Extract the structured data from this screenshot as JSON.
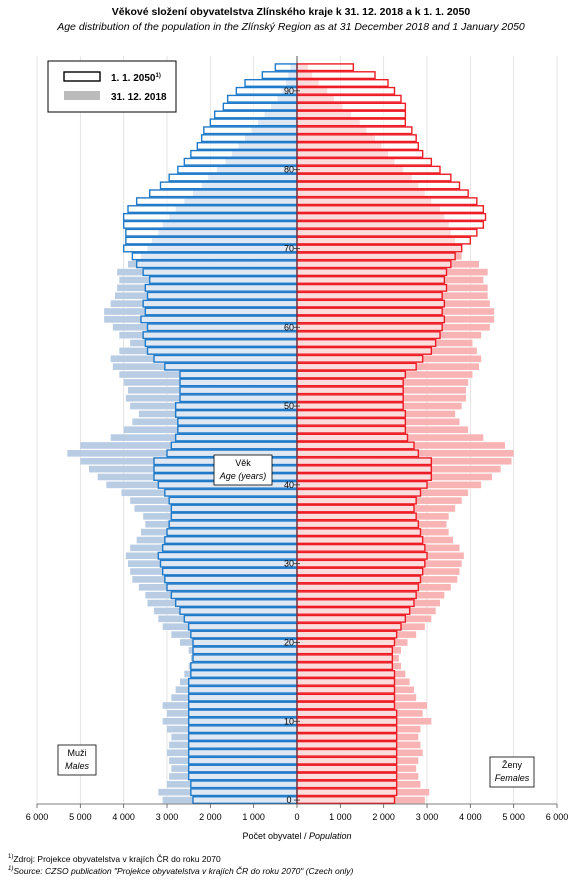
{
  "title": "Věkové složení obyvatelstva Zlínského kraje k 31. 12. 2018 a k 1. 1. 2050",
  "subtitle": "Age distribution of the population  in the Zlínský  Region as at 31 December 2018 and 1 January 2050",
  "legend": [
    {
      "label": "1. 1. 2050",
      "note_mark": "1)"
    },
    {
      "label": "31. 12. 2018"
    }
  ],
  "center_label": {
    "cs": "Věk",
    "en": "Age (years)"
  },
  "males_label": {
    "cs": "Muži",
    "en": "Males"
  },
  "females_label": {
    "cs": "Ženy",
    "en": "Females"
  },
  "x_axis_label": {
    "cs": "Počet obyvatel / ",
    "en": "Population"
  },
  "notes": [
    {
      "mark": "1)",
      "text": "Zdroj: Projekce obyvatelstva v krajích ČR do roku 2070"
    },
    {
      "mark": "1)",
      "text": "Source: CZSO publication \"Projekce obyvatelstva v krajích ČR do roku 2070\" (Czech only)"
    }
  ],
  "colors": {
    "male_2018": "#b8cce4",
    "female_2018": "#f8b4b4",
    "male_2050": "#1f7ac9",
    "female_2050": "#ee1c25",
    "axis": "#555555"
  },
  "chart_data": {
    "type": "bar",
    "orientation": "horizontal-population-pyramid",
    "x_tick_labels": [
      "6 000",
      "5 000",
      "4 000",
      "3 000",
      "2 000",
      "1 000",
      "0",
      "1 000",
      "2 000",
      "3 000",
      "4 000",
      "5 000",
      "6 000"
    ],
    "x_range": [
      -6000,
      6000
    ],
    "y_tick_labels": [
      "0",
      "10",
      "20",
      "30",
      "40",
      "50",
      "60",
      "70",
      "80",
      "90"
    ],
    "y_range": [
      0,
      93
    ],
    "ages": [
      0,
      1,
      2,
      3,
      4,
      5,
      6,
      7,
      8,
      9,
      10,
      11,
      12,
      13,
      14,
      15,
      16,
      17,
      18,
      19,
      20,
      21,
      22,
      23,
      24,
      25,
      26,
      27,
      28,
      29,
      30,
      31,
      32,
      33,
      34,
      35,
      36,
      37,
      38,
      39,
      40,
      41,
      42,
      43,
      44,
      45,
      46,
      47,
      48,
      49,
      50,
      51,
      52,
      53,
      54,
      55,
      56,
      57,
      58,
      59,
      60,
      61,
      62,
      63,
      64,
      65,
      66,
      67,
      68,
      69,
      70,
      71,
      72,
      73,
      74,
      75,
      76,
      77,
      78,
      79,
      80,
      81,
      82,
      83,
      84,
      85,
      86,
      87,
      88,
      89,
      90,
      91,
      92,
      93
    ],
    "series": [
      {
        "name": "31. 12. 2018",
        "sex": "male",
        "values": [
          3100,
          3200,
          3000,
          2950,
          2900,
          2950,
          3000,
          2950,
          2900,
          3000,
          3100,
          3000,
          3100,
          2900,
          2800,
          2700,
          2600,
          2500,
          2450,
          2500,
          2700,
          2900,
          3100,
          3200,
          3300,
          3450,
          3500,
          3650,
          3800,
          3850,
          3900,
          3950,
          3850,
          3700,
          3600,
          3500,
          3550,
          3750,
          3850,
          4050,
          4400,
          4600,
          4800,
          5000,
          5300,
          5000,
          4300,
          4000,
          3800,
          3650,
          3850,
          3950,
          3900,
          4000,
          4100,
          4250,
          4300,
          4100,
          3850,
          4100,
          4250,
          4450,
          4450,
          4300,
          4200,
          4150,
          4100,
          4150,
          3900,
          3600,
          3450,
          3350,
          3200,
          3100,
          2950,
          2800,
          2600,
          2400,
          2200,
          2050,
          1850,
          1650,
          1500,
          1350,
          1200,
          1050,
          900,
          750,
          600,
          450,
          350,
          250,
          200,
          150
        ]
      },
      {
        "name": "31. 12. 2018",
        "sex": "female",
        "values": [
          2950,
          3050,
          2850,
          2800,
          2750,
          2800,
          2900,
          2850,
          2800,
          2850,
          3100,
          2900,
          3000,
          2750,
          2700,
          2600,
          2500,
          2400,
          2350,
          2400,
          2550,
          2750,
          2950,
          3100,
          3200,
          3300,
          3400,
          3550,
          3700,
          3750,
          3800,
          3850,
          3750,
          3600,
          3500,
          3450,
          3500,
          3650,
          3800,
          3950,
          4250,
          4500,
          4700,
          4950,
          5000,
          4800,
          4300,
          3950,
          3750,
          3650,
          3800,
          3900,
          3900,
          3950,
          4050,
          4200,
          4250,
          4150,
          4050,
          4250,
          4450,
          4550,
          4550,
          4450,
          4400,
          4400,
          4300,
          4400,
          4200,
          3800,
          3800,
          3650,
          3550,
          3500,
          3400,
          3300,
          3100,
          2950,
          2800,
          2650,
          2450,
          2250,
          2100,
          1950,
          1800,
          1600,
          1450,
          1250,
          1050,
          850,
          700,
          500,
          350,
          250
        ]
      },
      {
        "name": "1. 1. 2050",
        "sex": "male",
        "values": [
          2400,
          2450,
          2450,
          2500,
          2500,
          2500,
          2500,
          2500,
          2500,
          2500,
          2500,
          2500,
          2500,
          2500,
          2500,
          2500,
          2450,
          2450,
          2400,
          2400,
          2400,
          2450,
          2500,
          2600,
          2700,
          2800,
          2900,
          3000,
          3050,
          3100,
          3150,
          3200,
          3100,
          3050,
          3000,
          2950,
          2900,
          2900,
          2950,
          3050,
          3200,
          3300,
          3300,
          3300,
          3000,
          2900,
          2800,
          2750,
          2750,
          2800,
          2800,
          2700,
          2700,
          2700,
          2700,
          3050,
          3300,
          3450,
          3500,
          3550,
          3450,
          3600,
          3500,
          3550,
          3450,
          3500,
          3400,
          3550,
          3700,
          3800,
          4000,
          3950,
          3950,
          4000,
          4000,
          3900,
          3700,
          3400,
          3150,
          2950,
          2750,
          2600,
          2450,
          2300,
          2200,
          2150,
          2000,
          1900,
          1700,
          1600,
          1400,
          1200,
          800,
          500
        ]
      },
      {
        "name": "1. 1. 2050",
        "sex": "female",
        "values": [
          2250,
          2300,
          2300,
          2300,
          2300,
          2300,
          2300,
          2300,
          2300,
          2300,
          2300,
          2300,
          2250,
          2250,
          2250,
          2250,
          2250,
          2200,
          2200,
          2200,
          2250,
          2300,
          2400,
          2500,
          2600,
          2700,
          2750,
          2800,
          2850,
          2900,
          2950,
          3000,
          2950,
          2900,
          2850,
          2800,
          2750,
          2700,
          2750,
          2850,
          3000,
          3100,
          3100,
          3100,
          2800,
          2700,
          2550,
          2500,
          2500,
          2500,
          2450,
          2450,
          2450,
          2450,
          2500,
          2750,
          2900,
          3100,
          3200,
          3300,
          3350,
          3400,
          3350,
          3400,
          3350,
          3450,
          3400,
          3450,
          3550,
          3650,
          3800,
          4000,
          4150,
          4300,
          4350,
          4300,
          4150,
          3950,
          3750,
          3550,
          3300,
          3100,
          2900,
          2800,
          2750,
          2650,
          2500,
          2500,
          2500,
          2400,
          2250,
          2100,
          1800,
          1300
        ]
      }
    ]
  }
}
